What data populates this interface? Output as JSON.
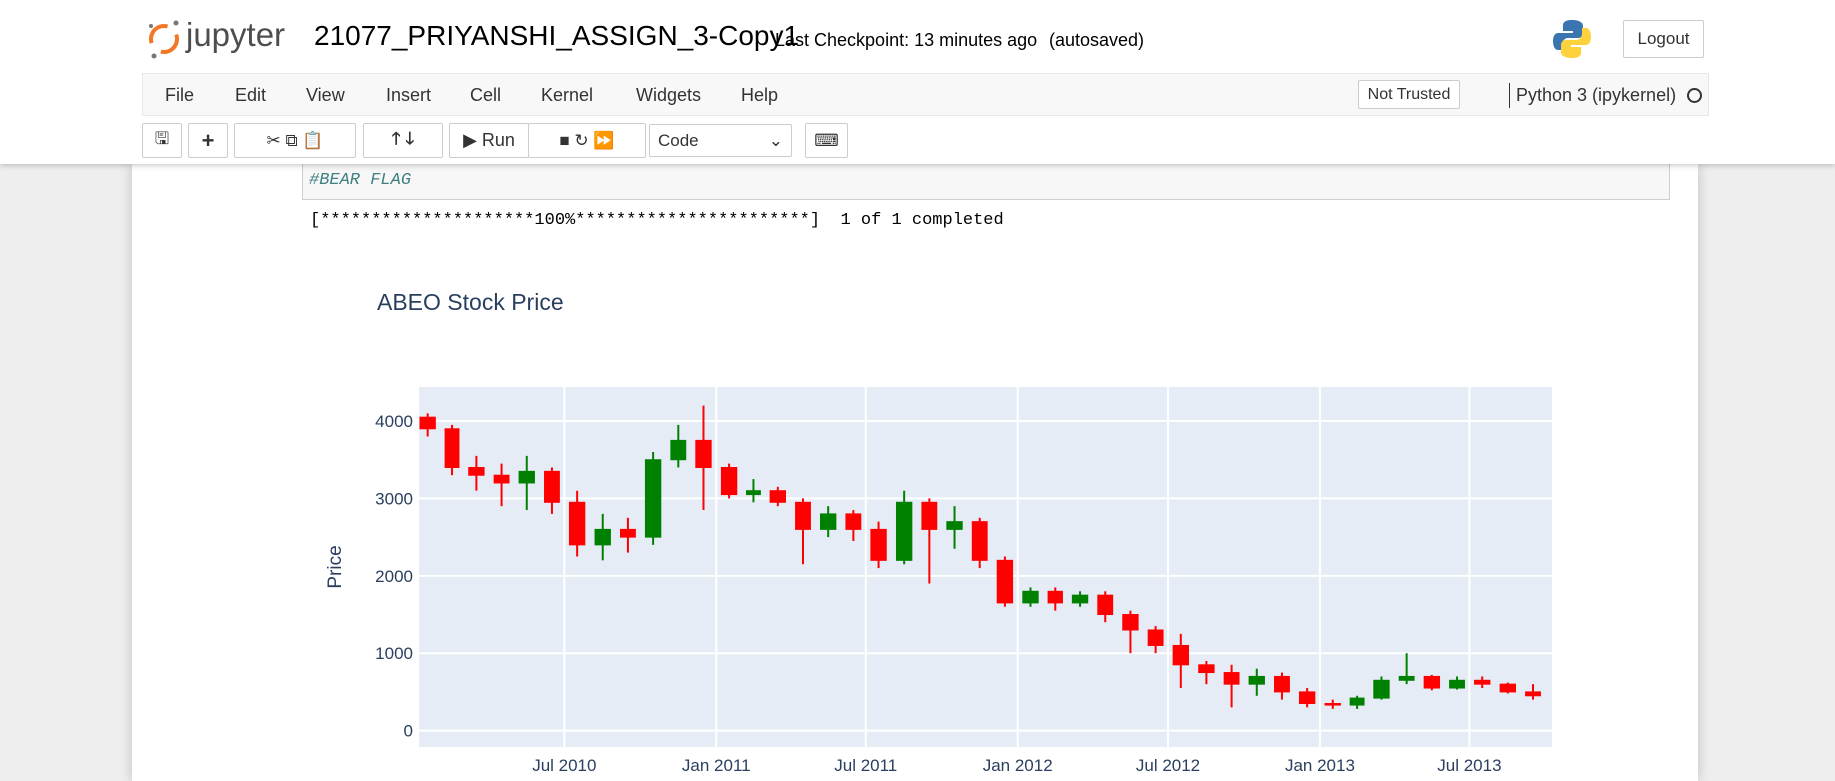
{
  "header": {
    "logo_text": "jupyter",
    "notebook_title": "21077_PRIYANSHI_ASSIGN_3-Copy1",
    "checkpoint": "Last Checkpoint: 13 minutes ago",
    "autosaved": "(autosaved)",
    "logout": "Logout"
  },
  "menu": [
    "File",
    "Edit",
    "View",
    "Insert",
    "Cell",
    "Kernel",
    "Widgets",
    "Help"
  ],
  "trust": "Not Trusted",
  "kernel": "Python 3 (ipykernel)",
  "toolbar": {
    "run": "Run",
    "cell_type": "Code"
  },
  "cell": {
    "code": "#BEAR FLAG",
    "output": "[*********************100%***********************]  1 of 1 completed"
  },
  "chart_data": {
    "type": "candlestick",
    "title": "ABEO Stock Price",
    "y_label": "Price",
    "x": [
      "2010-01",
      "2010-02",
      "2010-03",
      "2010-04",
      "2010-05",
      "2010-06",
      "2010-07",
      "2010-08",
      "2010-09",
      "2010-10",
      "2010-11",
      "2010-12",
      "2011-01",
      "2011-02",
      "2011-03",
      "2011-04",
      "2011-05",
      "2011-06",
      "2011-07",
      "2011-08",
      "2011-09",
      "2011-10",
      "2011-11",
      "2011-12",
      "2012-01",
      "2012-02",
      "2012-03",
      "2012-04",
      "2012-05",
      "2012-06",
      "2012-07",
      "2012-08",
      "2012-09",
      "2012-10",
      "2012-11",
      "2012-12",
      "2013-01",
      "2013-02",
      "2013-03",
      "2013-04",
      "2013-05",
      "2013-06",
      "2013-07",
      "2013-08",
      "2013-09"
    ],
    "open": [
      4050,
      3900,
      3400,
      3300,
      3200,
      3350,
      2950,
      2400,
      2600,
      2500,
      3500,
      3750,
      3400,
      3050,
      3100,
      2950,
      2600,
      2800,
      2600,
      2200,
      2950,
      2600,
      2700,
      2200,
      1650,
      1800,
      1650,
      1750,
      1500,
      1300,
      1100,
      850,
      750,
      600,
      700,
      500,
      350,
      330,
      420,
      650,
      700,
      550,
      650,
      600,
      500
    ],
    "high": [
      4100,
      3950,
      3550,
      3450,
      3550,
      3400,
      3100,
      2800,
      2750,
      3600,
      3950,
      4200,
      3450,
      3250,
      3150,
      3000,
      2900,
      2850,
      2700,
      3100,
      3000,
      2900,
      2750,
      2250,
      1850,
      1850,
      1800,
      1800,
      1550,
      1350,
      1250,
      900,
      850,
      800,
      750,
      550,
      400,
      450,
      700,
      1000,
      720,
      700,
      700,
      620,
      600
    ],
    "low": [
      3800,
      3300,
      3100,
      2900,
      2850,
      2800,
      2250,
      2200,
      2300,
      2400,
      3400,
      2850,
      3000,
      2950,
      2900,
      2150,
      2500,
      2450,
      2100,
      2150,
      1900,
      2350,
      2100,
      1600,
      1600,
      1550,
      1600,
      1400,
      1000,
      1000,
      550,
      600,
      300,
      450,
      400,
      300,
      280,
      280,
      400,
      600,
      520,
      530,
      550,
      480,
      400
    ],
    "close": [
      3900,
      3400,
      3300,
      3200,
      3350,
      2950,
      2400,
      2600,
      2500,
      3500,
      3750,
      3400,
      3050,
      3100,
      2950,
      2600,
      2800,
      2600,
      2200,
      2950,
      2600,
      2700,
      2200,
      1650,
      1800,
      1650,
      1750,
      1500,
      1300,
      1100,
      850,
      750,
      600,
      700,
      500,
      350,
      330,
      420,
      650,
      700,
      550,
      650,
      600,
      500,
      450
    ],
    "increasing_color": "green",
    "decreasing_color": "red",
    "xlim": [
      "2010-01-06",
      "2013-10-09"
    ],
    "xticks": [
      {
        "value": "2010-07-01",
        "label": "Jul 2010"
      },
      {
        "value": "2011-01-01",
        "label": "Jan 2011"
      },
      {
        "value": "2011-07-01",
        "label": "Jul 2011"
      },
      {
        "value": "2012-01-01",
        "label": "Jan 2012"
      },
      {
        "value": "2012-07-01",
        "label": "Jul 2012"
      },
      {
        "value": "2013-01-01",
        "label": "Jan 2013"
      },
      {
        "value": "2013-07-01",
        "label": "Jul 2013"
      }
    ],
    "ylim": [
      -212,
      4440
    ],
    "yticks": [
      0,
      1000,
      2000,
      3000,
      4000
    ],
    "grid": true
  }
}
